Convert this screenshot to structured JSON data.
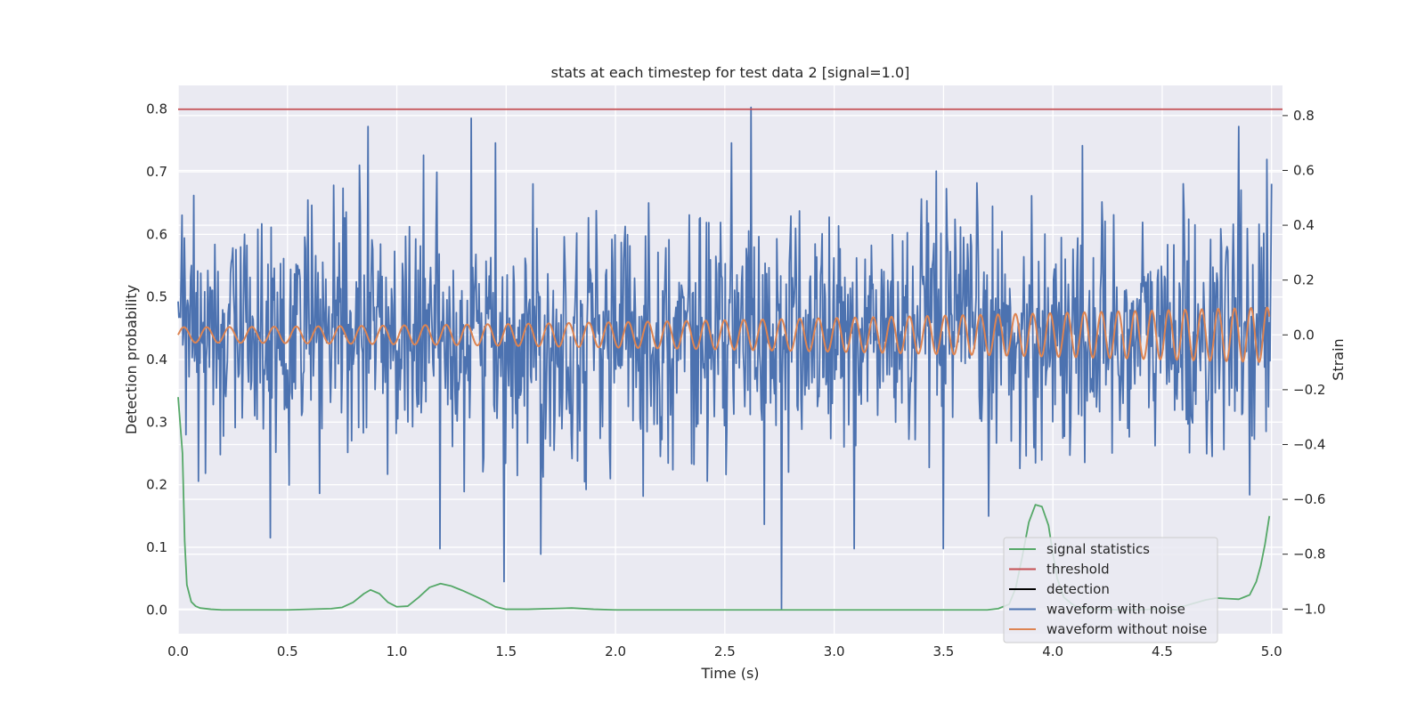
{
  "chart_data": {
    "type": "line",
    "title": "stats at each timestep for test data 2 [signal=1.0]",
    "xlabel": "Time (s)",
    "ylabel_left": "Detection probability",
    "ylabel_right": "Strain",
    "xlim": [
      0.0,
      5.05
    ],
    "ylim_left": [
      -0.038,
      0.838
    ],
    "ylim_right": [
      -1.09,
      0.91
    ],
    "x_ticks": [
      "0.0",
      "0.5",
      "1.0",
      "1.5",
      "2.0",
      "2.5",
      "3.0",
      "3.5",
      "4.0",
      "4.5",
      "5.0"
    ],
    "y_ticks_left": [
      "0.0",
      "0.1",
      "0.2",
      "0.3",
      "0.4",
      "0.5",
      "0.6",
      "0.7",
      "0.8"
    ],
    "y_ticks_right": [
      "−1.0",
      "−0.8",
      "−0.6",
      "−0.4",
      "−0.2",
      "0.0",
      "0.2",
      "0.4",
      "0.6",
      "0.8"
    ],
    "grid": true,
    "legend_position": "lower-right",
    "colors": {
      "background": "#eaeaf2",
      "grid": "#ffffff",
      "signal": "#55a868",
      "threshold": "#c44e52",
      "detection": "#000000",
      "noisy": "#4c72b0",
      "clean": "#dd8452"
    },
    "series": [
      {
        "name": "signal statistics",
        "axis": "left",
        "color": "#55a868",
        "x": [
          0.0,
          0.02,
          0.03,
          0.04,
          0.06,
          0.08,
          0.1,
          0.15,
          0.2,
          0.3,
          0.5,
          0.7,
          0.75,
          0.8,
          0.85,
          0.88,
          0.92,
          0.96,
          1.0,
          1.05,
          1.1,
          1.15,
          1.2,
          1.25,
          1.3,
          1.35,
          1.4,
          1.45,
          1.5,
          1.6,
          1.7,
          1.8,
          1.9,
          2.0,
          2.5,
          3.0,
          3.5,
          3.7,
          3.75,
          3.8,
          3.83,
          3.86,
          3.89,
          3.92,
          3.95,
          3.98,
          4.0,
          4.02,
          4.05,
          4.1,
          4.2,
          4.3,
          4.4,
          4.5,
          4.6,
          4.65,
          4.7,
          4.75,
          4.8,
          4.85,
          4.9,
          4.93,
          4.95,
          4.97,
          4.99
        ],
        "y": [
          0.34,
          0.25,
          0.11,
          0.04,
          0.013,
          0.006,
          0.003,
          0.001,
          0.0,
          0.0,
          0.0,
          0.002,
          0.004,
          0.012,
          0.026,
          0.032,
          0.026,
          0.012,
          0.005,
          0.006,
          0.02,
          0.036,
          0.042,
          0.038,
          0.031,
          0.023,
          0.015,
          0.005,
          0.001,
          0.001,
          0.002,
          0.003,
          0.001,
          0.0,
          0.0,
          0.0,
          0.0,
          0.0,
          0.002,
          0.009,
          0.035,
          0.085,
          0.14,
          0.168,
          0.165,
          0.135,
          0.09,
          0.05,
          0.02,
          0.006,
          0.001,
          0.0,
          0.0,
          0.002,
          0.006,
          0.011,
          0.016,
          0.019,
          0.018,
          0.017,
          0.024,
          0.045,
          0.07,
          0.105,
          0.15
        ]
      },
      {
        "name": "threshold",
        "axis": "left",
        "color": "#c44e52",
        "x": [
          0.0,
          5.05
        ],
        "y": [
          0.8,
          0.8
        ]
      },
      {
        "name": "detection",
        "axis": "left",
        "color": "#000000",
        "x": [],
        "y": []
      },
      {
        "name": "waveform with noise",
        "axis": "right",
        "color": "#4c72b0",
        "x_range": [
          0.0,
          5.0
        ],
        "sample_count": 1400,
        "noise_std": 0.22,
        "spikes": [
          {
            "x": 0.42,
            "y": -0.74
          },
          {
            "x": 0.87,
            "y": 0.76
          },
          {
            "x": 1.34,
            "y": 0.79
          },
          {
            "x": 1.49,
            "y": -0.9
          },
          {
            "x": 1.66,
            "y": -0.8
          },
          {
            "x": 2.62,
            "y": 0.83
          },
          {
            "x": 2.76,
            "y": -1.0
          },
          {
            "x": 3.09,
            "y": -0.78
          },
          {
            "x": 3.5,
            "y": -0.78
          },
          {
            "x": 4.85,
            "y": 0.76
          },
          {
            "x": 4.98,
            "y": 0.64
          }
        ]
      },
      {
        "name": "waveform without noise",
        "axis": "right",
        "color": "#dd8452",
        "model": "chirp",
        "x_range": [
          0.0,
          4.99
        ],
        "amplitude_start": 0.028,
        "amplitude_end": 0.1,
        "cycles_first_second": 9.5,
        "cycles_last_second": 13.5
      }
    ]
  }
}
